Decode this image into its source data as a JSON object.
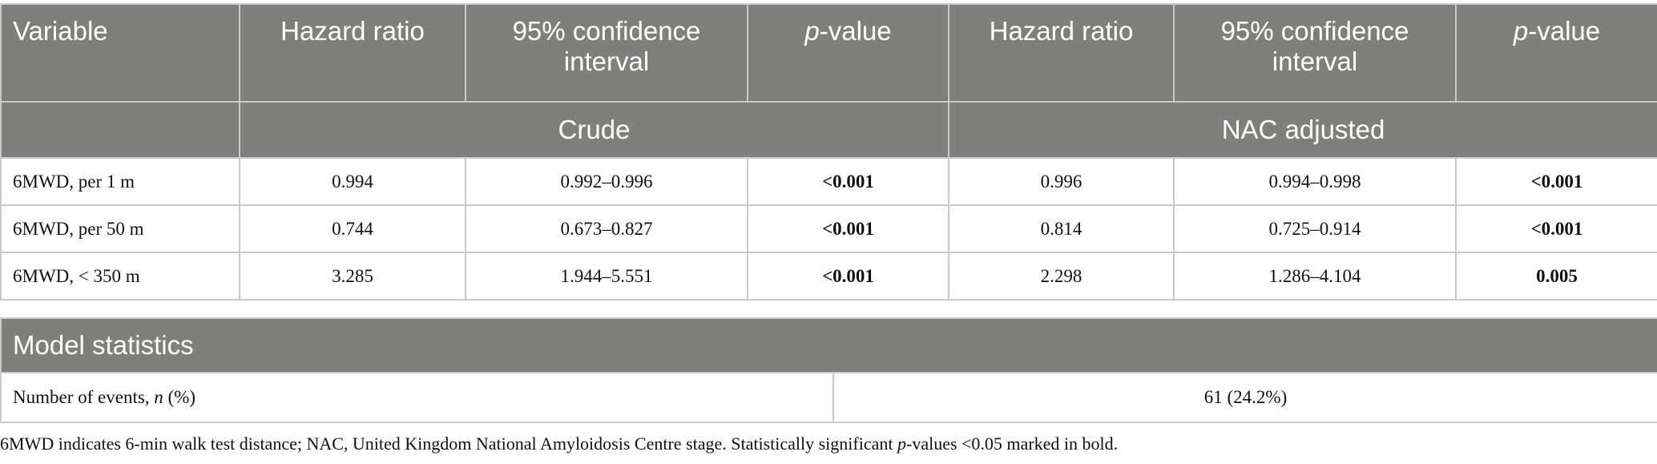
{
  "header": {
    "columns": [
      "Variable",
      "Hazard ratio",
      "95% confidence interval",
      "p-value",
      "Hazard ratio",
      "95% confidence interval",
      "p-value"
    ],
    "p_italic": "p",
    "p_rest": "-value",
    "ci_line1": "95% confidence",
    "ci_line2": "interval",
    "groups": [
      "Crude",
      "NAC adjusted"
    ]
  },
  "rows": [
    {
      "variable": "6MWD, per 1 m",
      "crude_hr": "0.994",
      "crude_ci": "0.992–0.996",
      "crude_p": "<0.001",
      "adj_hr": "0.996",
      "adj_ci": "0.994–0.998",
      "adj_p": "<0.001"
    },
    {
      "variable": "6MWD, per 50 m",
      "crude_hr": "0.744",
      "crude_ci": "0.673–0.827",
      "crude_p": "<0.001",
      "adj_hr": "0.814",
      "adj_ci": "0.725–0.914",
      "adj_p": "<0.001"
    },
    {
      "variable": "6MWD, < 350 m",
      "crude_hr": "3.285",
      "crude_ci": "1.944–5.551",
      "crude_p": "<0.001",
      "adj_hr": "2.298",
      "adj_ci": "1.286–4.104",
      "adj_p": "0.005"
    }
  ],
  "model_statistics": {
    "title": "Model statistics",
    "label_pre": "Number of events, ",
    "label_italic": "n",
    "label_post": " (%)",
    "value": "61 (24.2%)"
  },
  "footnote": {
    "pre": "6MWD indicates 6-min walk test distance; NAC, United Kingdom National Amyloidosis Centre stage. Statistically significant ",
    "italic": "p",
    "post": "-values <0.05 marked in bold."
  },
  "colors": {
    "header_bg": "#7f807e",
    "border": "#c9c9c9"
  }
}
